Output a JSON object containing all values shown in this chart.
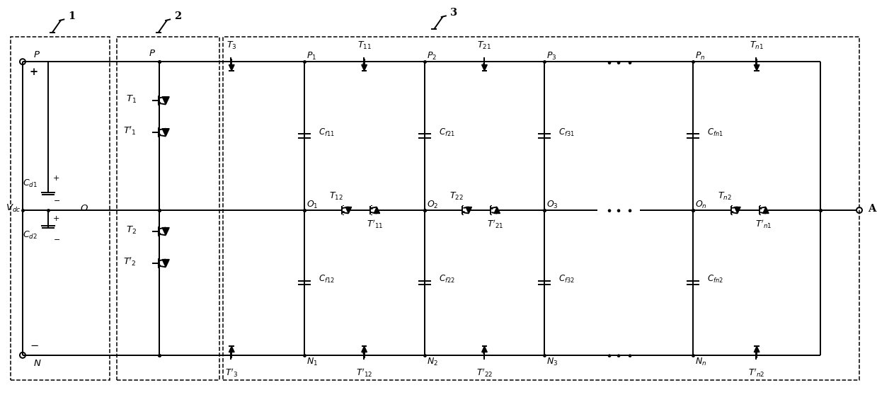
{
  "fig_width": 12.39,
  "fig_height": 5.92,
  "bg_color": "#ffffff",
  "line_color": "#000000",
  "lw": 1.4,
  "dlw": 1.1,
  "fs": 9.5
}
